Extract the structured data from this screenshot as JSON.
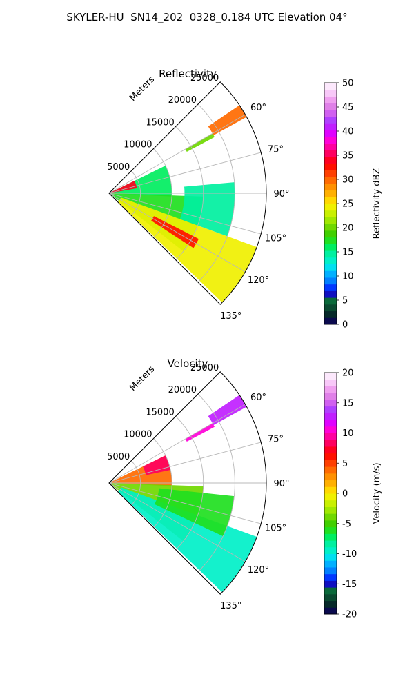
{
  "suptitle": "SKYLER-HU  SN14_202  0328_0.184 UTC Elevation 04°",
  "chart_data": [
    {
      "type": "heatmap",
      "subtype": "polar-sector (PPI)",
      "title": "Reflectivity",
      "radial_label": "Meters",
      "radial_ticks": [
        "5000",
        "10000",
        "15000",
        "20000",
        "25000"
      ],
      "radial_values": [
        5000,
        10000,
        15000,
        20000,
        25000
      ],
      "range_max": 25000,
      "azimuth_range": [
        45,
        135
      ],
      "azimuth_ticks": [
        "60°",
        "75°",
        "90°",
        "105°",
        "120°",
        "135°"
      ],
      "azimuth_values": [
        60,
        75,
        90,
        105,
        120,
        135
      ],
      "grid": true,
      "colorbar": {
        "label": "Reflectivity dBZ",
        "range": [
          0,
          50
        ],
        "ticks": [
          "0",
          "5",
          "10",
          "15",
          "20",
          "25",
          "30",
          "35",
          "40",
          "45",
          "50"
        ],
        "colors": [
          "#0b0a4e",
          "#072a2a",
          "#0a4a30",
          "#0a6a3a",
          "#1010c0",
          "#0038ff",
          "#0080ff",
          "#00b0ff",
          "#00e0f0",
          "#00f0c8",
          "#00f0a0",
          "#00ee60",
          "#20e020",
          "#40d000",
          "#70d800",
          "#a0e800",
          "#c8f000",
          "#f0f000",
          "#ffd800",
          "#ffb000",
          "#ff9000",
          "#ff6a00",
          "#ff4000",
          "#ff1000",
          "#ff0020",
          "#ff0060",
          "#ff00a0",
          "#ff00d8",
          "#e000ff",
          "#c020ff",
          "#b040ff",
          "#d060f0",
          "#e080e8",
          "#f0a0f0",
          "#f8c8f8",
          "#fce8fc"
        ]
      },
      "echo_regions": [
        {
          "az_from": 56,
          "az_to": 61,
          "r_from": 19000,
          "r_to": 26000,
          "value": 30
        },
        {
          "az_from": 60,
          "az_to": 62,
          "r_from": 14000,
          "r_to": 19000,
          "value": 20
        },
        {
          "az_from": 64,
          "az_to": 93,
          "r_from": 0,
          "r_to": 10000,
          "value": 16
        },
        {
          "az_from": 64,
          "az_to": 80,
          "r_from": 0,
          "r_to": 4500,
          "value": 34
        },
        {
          "az_from": 92,
          "az_to": 128,
          "r_from": 0,
          "r_to": 15000,
          "value": 18
        },
        {
          "az_from": 110,
          "az_to": 134,
          "r_from": 2000,
          "r_to": 25000,
          "value": 24
        },
        {
          "az_from": 117,
          "az_to": 123,
          "r_from": 8000,
          "r_to": 16000,
          "value": 33
        },
        {
          "az_from": 85,
          "az_to": 110,
          "r_from": 12000,
          "r_to": 20000,
          "value": 15
        }
      ]
    },
    {
      "type": "heatmap",
      "subtype": "polar-sector (PPI)",
      "title": "Velocity",
      "radial_label": "Meters",
      "radial_ticks": [
        "5000",
        "10000",
        "15000",
        "20000",
        "25000"
      ],
      "radial_values": [
        5000,
        10000,
        15000,
        20000,
        25000
      ],
      "range_max": 25000,
      "azimuth_range": [
        45,
        135
      ],
      "azimuth_ticks": [
        "60°",
        "75°",
        "90°",
        "105°",
        "120°",
        "135°"
      ],
      "azimuth_values": [
        60,
        75,
        90,
        105,
        120,
        135
      ],
      "grid": true,
      "colorbar": {
        "label": "Velocity (m/s)",
        "range": [
          -20,
          20
        ],
        "ticks": [
          "-20",
          "-15",
          "-10",
          "-5",
          "0",
          "5",
          "10",
          "15",
          "20"
        ],
        "colors": [
          "#0b0a4e",
          "#072a2a",
          "#0a4a30",
          "#0a6a3a",
          "#1010c0",
          "#0038ff",
          "#0080ff",
          "#00b0ff",
          "#00e0f0",
          "#00f0c8",
          "#00f0a0",
          "#00ee60",
          "#20e020",
          "#40d000",
          "#70d800",
          "#a0e800",
          "#c8f000",
          "#f0f000",
          "#ffd800",
          "#ffb000",
          "#ff9000",
          "#ff6a00",
          "#ff4000",
          "#ff1000",
          "#ff0020",
          "#ff0060",
          "#ff00a0",
          "#ff00d8",
          "#e000ff",
          "#c020ff",
          "#b040ff",
          "#d060f0",
          "#e080e8",
          "#f0a0f0",
          "#f8c8f8",
          "#fce8fc"
        ]
      },
      "echo_regions": [
        {
          "az_from": 56,
          "az_to": 61,
          "r_from": 19000,
          "r_to": 26000,
          "value": 13
        },
        {
          "az_from": 60,
          "az_to": 62,
          "r_from": 14000,
          "r_to": 19000,
          "value": 11
        },
        {
          "az_from": 64,
          "az_to": 93,
          "r_from": 0,
          "r_to": 10000,
          "value": 4
        },
        {
          "az_from": 64,
          "az_to": 78,
          "r_from": 6000,
          "r_to": 10000,
          "value": 8
        },
        {
          "az_from": 92,
          "az_to": 128,
          "r_from": 0,
          "r_to": 15000,
          "value": -4
        },
        {
          "az_from": 110,
          "az_to": 134,
          "r_from": 2000,
          "r_to": 25000,
          "value": -10
        },
        {
          "az_from": 96,
          "az_to": 115,
          "r_from": 8000,
          "r_to": 20000,
          "value": -6
        }
      ]
    }
  ]
}
